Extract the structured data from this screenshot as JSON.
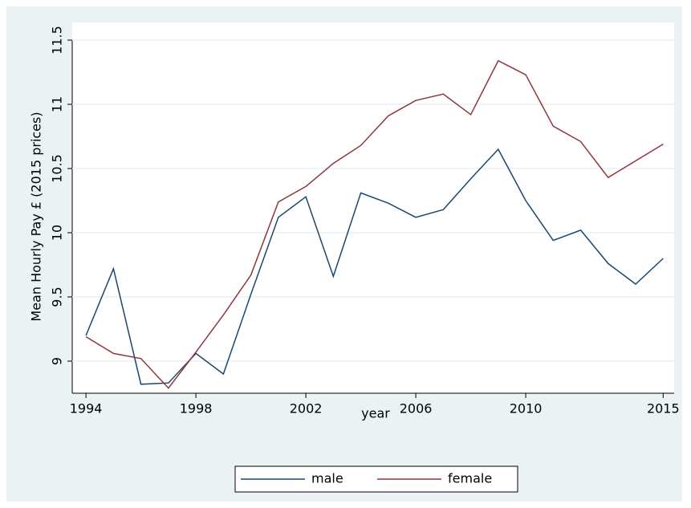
{
  "chart_data": {
    "type": "line",
    "xlabel": "year",
    "ylabel": "Mean Hourly Pay £  (2015 prices)",
    "x": [
      1994,
      1995,
      1996,
      1997,
      1998,
      1999,
      2000,
      2001,
      2002,
      2003,
      2004,
      2005,
      2006,
      2007,
      2008,
      2009,
      2010,
      2011,
      2012,
      2013,
      2014,
      2015
    ],
    "series": [
      {
        "name": "male",
        "color": "#1a476f",
        "values": [
          9.2,
          9.72,
          8.82,
          8.83,
          9.06,
          8.9,
          9.52,
          10.12,
          10.28,
          9.66,
          10.31,
          10.23,
          10.12,
          10.18,
          10.42,
          10.65,
          10.25,
          9.94,
          10.02,
          9.76,
          9.6,
          9.8
        ]
      },
      {
        "name": "female",
        "color": "#90353b",
        "values": [
          9.19,
          9.06,
          9.02,
          8.79,
          9.07,
          9.36,
          9.67,
          10.24,
          10.36,
          10.54,
          10.68,
          10.91,
          11.03,
          11.08,
          10.92,
          11.34,
          11.23,
          10.83,
          10.71,
          10.43,
          10.56,
          10.69
        ]
      }
    ],
    "xlim": [
      1993.5,
      2015.4
    ],
    "xticks": [
      1994,
      1998,
      2002,
      2006,
      2010,
      2015
    ],
    "ylim": [
      8.75,
      11.5
    ],
    "yticks": [
      9,
      9.5,
      10,
      10.5,
      11,
      11.5
    ],
    "grid": true
  }
}
